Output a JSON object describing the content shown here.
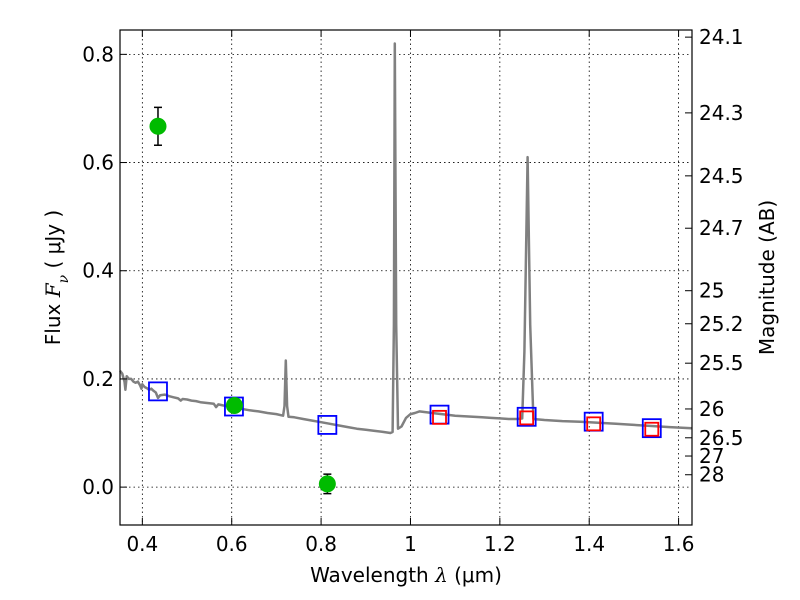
{
  "chart_data": {
    "type": "scatter",
    "xlabel": {
      "prefix": "Wavelength  ",
      "symbol": "λ",
      "units": " (μm)"
    },
    "ylabel": {
      "prefix": "Flux  ",
      "symbol": "F",
      "subscript": "ν",
      "units": "  ( μJy )"
    },
    "y2label": "Magnitude (AB)",
    "xlim": [
      0.35,
      1.63
    ],
    "ylim": [
      -0.07,
      0.845
    ],
    "grid": true,
    "x_ticks": [
      {
        "value": 0.4,
        "label": "0.4"
      },
      {
        "value": 0.6,
        "label": "0.6"
      },
      {
        "value": 0.8,
        "label": "0.8"
      },
      {
        "value": 1.0,
        "label": "1"
      },
      {
        "value": 1.2,
        "label": "1.2"
      },
      {
        "value": 1.4,
        "label": "1.4"
      },
      {
        "value": 1.6,
        "label": "1.6"
      }
    ],
    "y_ticks": [
      {
        "value": 0.0,
        "label": "0.0"
      },
      {
        "value": 0.2,
        "label": "0.2"
      },
      {
        "value": 0.4,
        "label": "0.4"
      },
      {
        "value": 0.6,
        "label": "0.6"
      },
      {
        "value": 0.8,
        "label": "0.8"
      }
    ],
    "magnitude_ticks": [
      {
        "flux": 0.8318,
        "label": "24.1"
      },
      {
        "flux": 0.6918,
        "label": "24.3"
      },
      {
        "flux": 0.5754,
        "label": "24.5"
      },
      {
        "flux": 0.4786,
        "label": "24.7"
      },
      {
        "flux": 0.3631,
        "label": "25"
      },
      {
        "flux": 0.302,
        "label": "25.2"
      },
      {
        "flux": 0.2291,
        "label": "25.5"
      },
      {
        "flux": 0.1445,
        "label": "26"
      },
      {
        "flux": 0.0912,
        "label": "26.5"
      },
      {
        "flux": 0.0575,
        "label": "27"
      },
      {
        "flux": 0.0229,
        "label": "28"
      }
    ],
    "series": [
      {
        "name": "model_spectrum",
        "kind": "line",
        "color": "#808080",
        "points": [
          [
            0.35,
            0.215
          ],
          [
            0.355,
            0.21
          ],
          [
            0.36,
            0.195
          ],
          [
            0.362,
            0.18
          ],
          [
            0.365,
            0.205
          ],
          [
            0.37,
            0.2
          ],
          [
            0.375,
            0.2
          ],
          [
            0.38,
            0.195
          ],
          [
            0.385,
            0.193
          ],
          [
            0.39,
            0.195
          ],
          [
            0.395,
            0.188
          ],
          [
            0.398,
            0.182
          ],
          [
            0.4,
            0.19
          ],
          [
            0.405,
            0.185
          ],
          [
            0.41,
            0.183
          ],
          [
            0.415,
            0.18
          ],
          [
            0.42,
            0.182
          ],
          [
            0.425,
            0.178
          ],
          [
            0.43,
            0.175
          ],
          [
            0.435,
            0.165
          ],
          [
            0.44,
            0.17
          ],
          [
            0.45,
            0.171
          ],
          [
            0.46,
            0.168
          ],
          [
            0.47,
            0.166
          ],
          [
            0.48,
            0.164
          ],
          [
            0.486,
            0.16
          ],
          [
            0.49,
            0.163
          ],
          [
            0.5,
            0.162
          ],
          [
            0.51,
            0.16
          ],
          [
            0.52,
            0.159
          ],
          [
            0.53,
            0.157
          ],
          [
            0.54,
            0.156
          ],
          [
            0.55,
            0.155
          ],
          [
            0.56,
            0.154
          ],
          [
            0.565,
            0.148
          ],
          [
            0.57,
            0.153
          ],
          [
            0.58,
            0.151
          ],
          [
            0.59,
            0.15
          ],
          [
            0.6,
            0.148
          ],
          [
            0.62,
            0.145
          ],
          [
            0.64,
            0.142
          ],
          [
            0.65,
            0.141
          ],
          [
            0.66,
            0.14
          ],
          [
            0.68,
            0.137
          ],
          [
            0.7,
            0.135
          ],
          [
            0.715,
            0.132
          ],
          [
            0.718,
            0.15
          ],
          [
            0.721,
            0.234
          ],
          [
            0.724,
            0.15
          ],
          [
            0.727,
            0.13
          ],
          [
            0.74,
            0.129
          ],
          [
            0.76,
            0.126
          ],
          [
            0.78,
            0.123
          ],
          [
            0.8,
            0.12
          ],
          [
            0.82,
            0.117
          ],
          [
            0.84,
            0.114
          ],
          [
            0.86,
            0.111
          ],
          [
            0.88,
            0.108
          ],
          [
            0.9,
            0.106
          ],
          [
            0.92,
            0.104
          ],
          [
            0.94,
            0.102
          ],
          [
            0.955,
            0.1
          ],
          [
            0.96,
            0.102
          ],
          [
            0.963,
            0.3
          ],
          [
            0.965,
            0.82
          ],
          [
            0.968,
            0.3
          ],
          [
            0.972,
            0.108
          ],
          [
            0.98,
            0.112
          ],
          [
            0.99,
            0.128
          ],
          [
            1.0,
            0.135
          ],
          [
            1.01,
            0.137
          ],
          [
            1.02,
            0.14
          ],
          [
            1.04,
            0.138
          ],
          [
            1.06,
            0.136
          ],
          [
            1.08,
            0.134
          ],
          [
            1.1,
            0.132
          ],
          [
            1.12,
            0.131
          ],
          [
            1.14,
            0.13
          ],
          [
            1.16,
            0.129
          ],
          [
            1.18,
            0.128
          ],
          [
            1.2,
            0.127
          ],
          [
            1.22,
            0.126
          ],
          [
            1.24,
            0.126
          ],
          [
            1.25,
            0.127
          ],
          [
            1.255,
            0.25
          ],
          [
            1.262,
            0.61
          ],
          [
            1.268,
            0.3
          ],
          [
            1.275,
            0.126
          ],
          [
            1.3,
            0.124
          ],
          [
            1.34,
            0.122
          ],
          [
            1.38,
            0.121
          ],
          [
            1.42,
            0.119
          ],
          [
            1.46,
            0.117
          ],
          [
            1.5,
            0.115
          ],
          [
            1.54,
            0.113
          ],
          [
            1.58,
            0.111
          ],
          [
            1.63,
            0.109
          ]
        ]
      },
      {
        "name": "model_photometry",
        "kind": "open-square",
        "color": "#0000ff",
        "points": [
          [
            0.435,
            0.177
          ],
          [
            0.605,
            0.149
          ],
          [
            0.814,
            0.115
          ],
          [
            1.065,
            0.134
          ],
          [
            1.26,
            0.13
          ],
          [
            1.41,
            0.121
          ],
          [
            1.54,
            0.109
          ]
        ]
      },
      {
        "name": "observed_photometry",
        "kind": "open-square",
        "color": "#ff0000",
        "points": [
          [
            1.065,
            0.129
          ],
          [
            1.26,
            0.128
          ],
          [
            1.41,
            0.117
          ],
          [
            1.54,
            0.107
          ]
        ]
      },
      {
        "name": "observed_optical",
        "kind": "filled-circle",
        "color": "#00bb00",
        "points": [
          [
            0.435,
            0.667,
            0.035
          ],
          [
            0.606,
            0.151,
            0.012
          ],
          [
            0.814,
            0.006,
            0.018
          ]
        ]
      }
    ]
  }
}
